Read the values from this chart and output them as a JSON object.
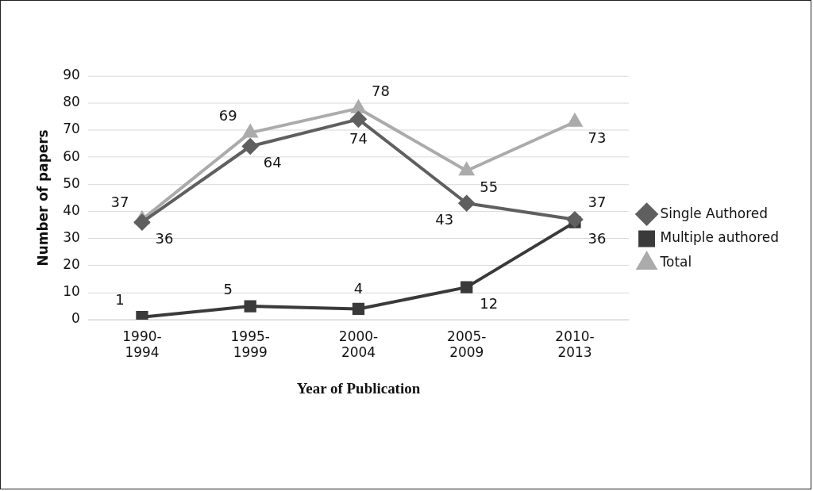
{
  "chart_data": {
    "type": "line",
    "xlabel": "Year of Publication",
    "ylabel": "Number of papers",
    "categories": [
      "1990-1994",
      "1995-1999",
      "2000-2004",
      "2005-2009",
      "2010-2013"
    ],
    "series": [
      {
        "name": "Single Authored",
        "color": "#5f5f5f",
        "marker": "diamond",
        "values": [
          36,
          64,
          74,
          43,
          37
        ]
      },
      {
        "name": "Multiple authored",
        "color": "#3a3a3a",
        "marker": "square",
        "values": [
          1,
          5,
          4,
          12,
          36
        ]
      },
      {
        "name": "Total",
        "color": "#ababab",
        "marker": "triangle",
        "values": [
          37,
          69,
          78,
          55,
          73
        ]
      }
    ],
    "ylim": [
      0,
      90
    ],
    "yticks": [
      0,
      10,
      20,
      30,
      40,
      50,
      60,
      70,
      80,
      90
    ],
    "grid": "y",
    "legend": "right",
    "data_labels": true
  }
}
